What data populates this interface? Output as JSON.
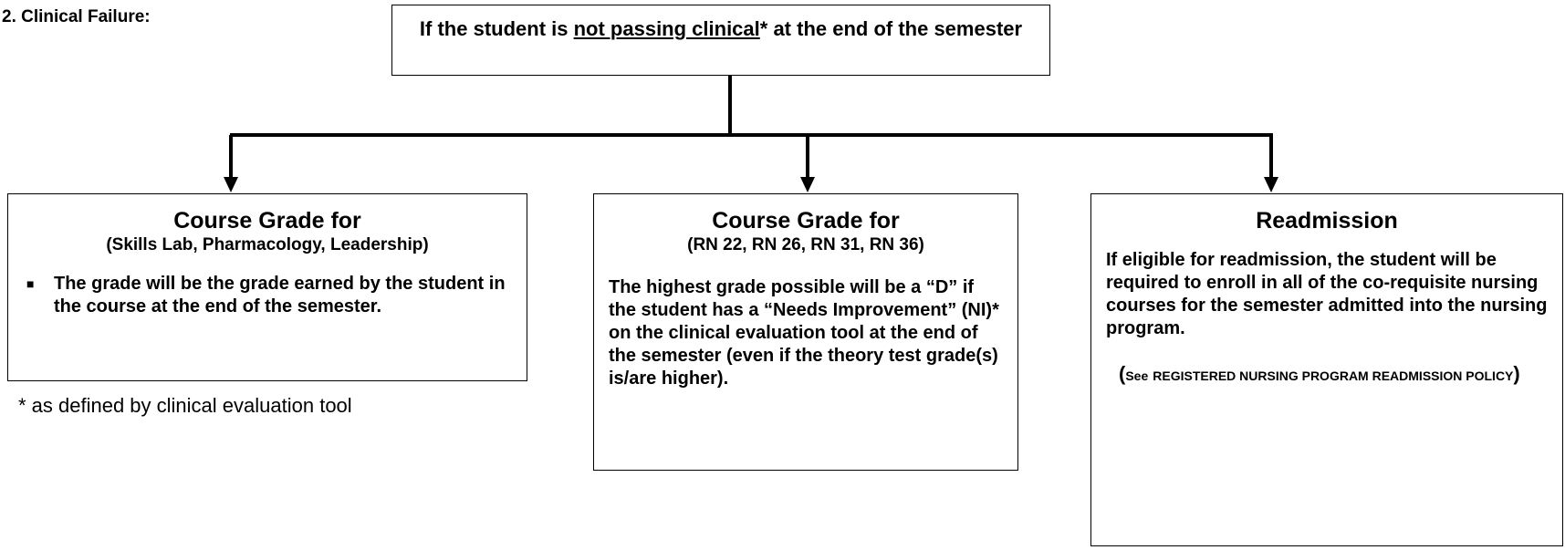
{
  "heading": "2. Clinical Failure:",
  "top_box": {
    "parts": [
      "If the student is",
      "not passing clinical",
      "* at the end of the semester"
    ]
  },
  "boxes": [
    {
      "title": "Course Grade for",
      "subtitle": "(Skills Lab, Pharmacology, Leadership)",
      "bullet": "The grade will be the grade earned by the student in the course at the end of the semester."
    },
    {
      "title": "Course Grade for",
      "subtitle": "(RN 22, RN 26, RN 31, RN 36)",
      "body": "The highest grade possible will be a “D” if the student has a “Needs Improvement” (NI)* on the clinical evaluation tool at the end of the semester (even if the theory test grade(s) is/are higher)."
    },
    {
      "title": "Readmission",
      "body": "If eligible for readmission, the student will be required to enroll in all of the co-requisite nursing courses for the semester admitted into the nursing program.",
      "note": [
        "(",
        "See",
        "REGISTERED NURSING PROGRAM READMISSION POLICY",
        ")"
      ]
    }
  ],
  "footnote": "* as defined by clinical evaluation tool"
}
